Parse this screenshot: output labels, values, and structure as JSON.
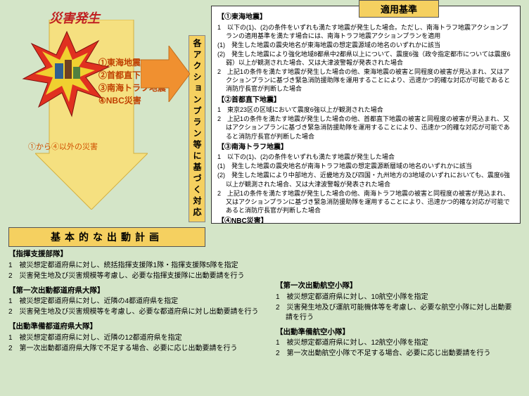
{
  "colors": {
    "bg": "#d4e5c8",
    "yellow": "#f5d060",
    "orange": "#f09030",
    "red": "#c02020",
    "burst_red": "#e03020",
    "white": "#ffffff"
  },
  "burst": {
    "title": "災害発生",
    "items": [
      "①東海地震",
      "②首都直下地震",
      "③南海トラフ地震",
      "④NBC災害"
    ],
    "note": "①から④以外の災害"
  },
  "vert_label": "各アクションプラン等に基づく対応",
  "criteria": {
    "tab": "適用基準",
    "sections": [
      {
        "h": "【①東海地震】",
        "lines": [
          "1　以下の(1)、(2)の条件をいずれも満たす地震が発生した場合。ただし、南海トラフ地震アクションプランの適用基準を満たす場合には、南海トラフ地震アクションプランを適用",
          "(1)　発生した地震の震央地名が東海地震の想定震源域の地名のいずれかに該当",
          "(2)　発生した地震により強化地域8都県中2都県以上について、震度6強（政令指定都市については震度6弱）以上が観測された場合、又は大津波警報が発表された場合",
          "2　上記1の条件を満たす地震が発生した場合の他、東海地震の被害と同程度の被害が見込まれ、又はアクションプランに基づき緊急消防援助隊を運用することにより、迅速かつ的確な対応が可能であると消防庁長官が判断した場合"
        ]
      },
      {
        "h": "【②首都直下地震】",
        "lines": [
          "1　東京23区の区域において震度6強以上が観測された場合",
          "2　上記1の条件を満たす地震が発生した場合の他、首都直下地震の被害と同程度の被害が見込まれ、又はアクションプランに基づき緊急消防援助隊を運用することにより、迅速かつ的確な対応が可能であると消防庁長官が判断した場合"
        ]
      },
      {
        "h": "【③南海トラフ地震】",
        "lines": [
          "1　以下の(1)、(2)の条件をいずれも満たす地震が発生した場合",
          "(1)　発生した地震の震央地名が南海トラフ地震の想定震源断層域の地名のいずれかに該当",
          "(2)　発生した地震により中部地方、近畿地方及び四国・九州地方の3地域のいずれにおいても、震度6強以上が観測された場合、又は大津波警報が発表された場合",
          "2　上記1の条件を満たす地震が発生した場合の他、南海トラフ地震の被害と同程度の被害が見込まれ、又はアクションプランに基づき緊急消防援助隊を運用することにより、迅速かつ的確な対応が可能であると消防庁長官が判断した場合"
        ]
      },
      {
        "h": "【④NBC災害】",
        "lines": [
          "NBC災害又はNBCの発散が疑われる災害が発生し、多数の負傷者が見込まれ、NBC災害の対処能力や迅速性の観点から消防庁長官がNBC災害即応部隊の出動が必要と認めた場合"
        ]
      }
    ]
  },
  "plan": {
    "bar": "基本的な出動計画",
    "left": [
      {
        "h": "【指揮支援部隊】",
        "lines": [
          "1　被災想定都道府県に対し、統括指揮支援隊1隊・指揮支援隊5隊を指定",
          "2　災害発生地及び災害規模等考慮し、必要な指揮支援隊に出動要請を行う"
        ]
      },
      {
        "h": "【第一次出動都道府県大隊】",
        "lines": [
          "1　被災想定都道府県に対し、近隣の4都道府県を指定",
          "2　災害発生地及び災害規模等を考慮し、必要な都道府県に対し出動要請を行う"
        ]
      },
      {
        "h": "【出動準備都道府県大隊】",
        "lines": [
          "1　被災想定都道府県に対し、近隣の12都道府県を指定",
          "2　第一次出動都道府県大隊で不足する場合、必要に応じ出動要請を行う"
        ]
      }
    ],
    "right": [
      {
        "h": "【第一次出動航空小隊】",
        "lines": [
          "1　被災想定都道府県に対し、10航空小隊を指定",
          "2　災害発生地及び運航可能機体等を考慮し、必要な航空小隊に対し出動要請を行う"
        ]
      },
      {
        "h": "【出動準備航空小隊】",
        "lines": [
          "1　被災想定都道府県に対し、12航空小隊を指定",
          "2　第一次出動航空小隊で不足する場合、必要に応じ出動要請を行う"
        ]
      }
    ]
  }
}
